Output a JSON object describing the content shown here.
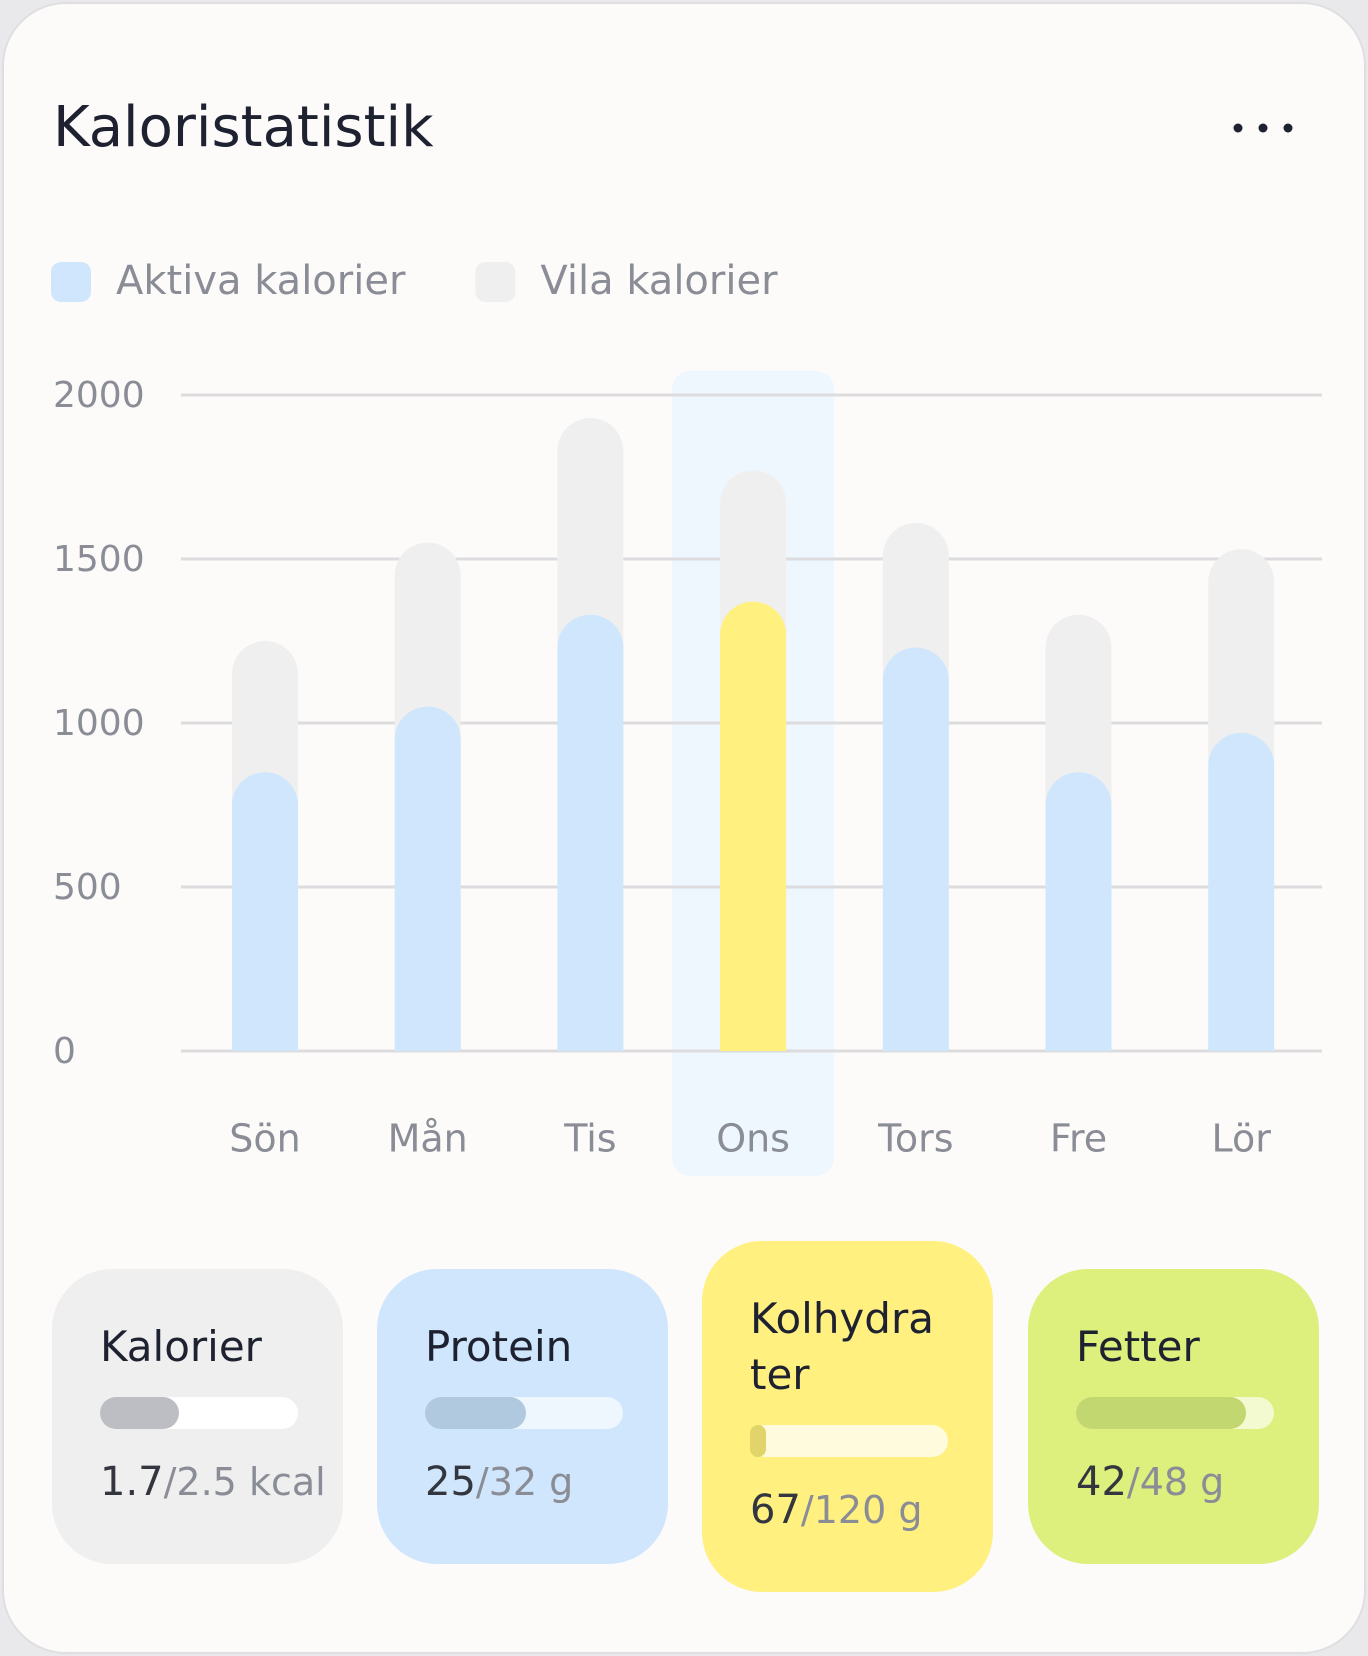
{
  "header": {
    "title": "Kaloristatistik"
  },
  "chart_data": {
    "type": "stacked-bar",
    "categories": [
      "Sön",
      "Mån",
      "Tis",
      "Ons",
      "Tors",
      "Fre",
      "Lör"
    ],
    "series": [
      {
        "name": "Aktiva kalorier",
        "color": "#cfe6fc",
        "values": [
          850,
          1050,
          1330,
          1370,
          1230,
          850,
          970
        ]
      },
      {
        "name": "Vila kalorier",
        "color": "#efefef",
        "values": [
          400,
          500,
          600,
          400,
          380,
          480,
          560
        ]
      }
    ],
    "highlight_index": 3,
    "highlight_color": "#fff080",
    "highlight_band_color": "#eef6fe",
    "ylim": [
      0,
      2000
    ],
    "yticks": [
      0,
      500,
      1000,
      1500,
      2000
    ],
    "grid": true
  },
  "cards": [
    {
      "title": "Kalorier",
      "value": 1.7,
      "total": "/2.5 kcal",
      "progress": 40,
      "color": "#efefef",
      "track": "#ffffff",
      "fill": "#bdbec3"
    },
    {
      "title": "Protein",
      "value": 25,
      "total": "/32 g",
      "progress": 51,
      "color": "#cfe6fc",
      "track": "#eef6fe",
      "fill": "#b0c9de"
    },
    {
      "title": "Kolhydrater",
      "value": 67,
      "total": "/120 g",
      "progress": 8,
      "color": "#fff080",
      "track": "#fffbdc",
      "fill": "#e0d46a"
    },
    {
      "title": "Fetter",
      "value": 42,
      "total": "/48 g",
      "progress": 86,
      "color": "#ddf07e",
      "track": "#f3fad0",
      "fill": "#c2d770"
    }
  ]
}
